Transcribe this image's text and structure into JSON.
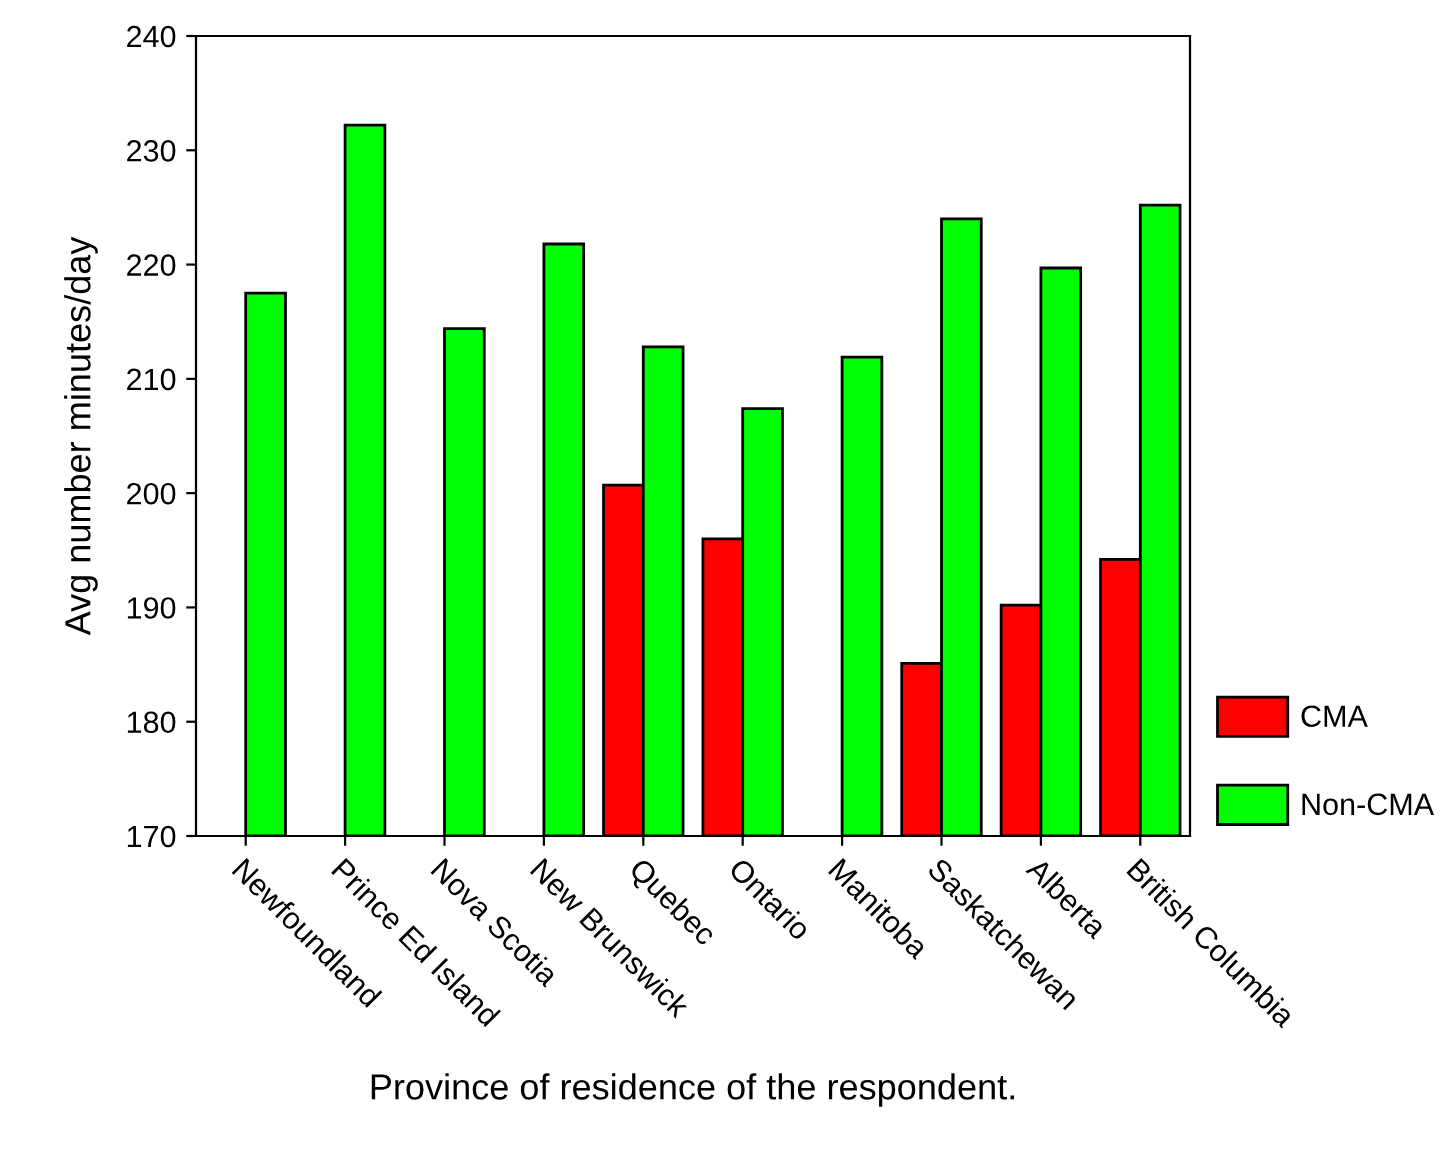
{
  "chart_data": {
    "type": "bar",
    "xlabel": "Province of residence of the respondent.",
    "ylabel": "Avg number minutes/day",
    "categories": [
      "Newfoundland",
      "Prince Ed Island",
      "Nova Scotia",
      "New Brunswick",
      "Quebec",
      "Ontario",
      "Manitoba",
      "Saskatchewan",
      "Alberta",
      "British Columbia"
    ],
    "series": [
      {
        "name": "CMA",
        "color": "#ff0000",
        "values": [
          null,
          null,
          null,
          null,
          200.7,
          196.0,
          null,
          185.1,
          190.2,
          194.2
        ]
      },
      {
        "name": "Non-CMA",
        "color": "#00ff00",
        "values": [
          217.5,
          232.2,
          214.4,
          221.8,
          212.8,
          207.4,
          211.9,
          224.0,
          219.7,
          225.2
        ]
      }
    ],
    "ylim": [
      170,
      240
    ],
    "yticks": [
      170,
      180,
      190,
      200,
      210,
      220,
      230,
      240
    ],
    "grid": false,
    "legend": "bottom right"
  }
}
